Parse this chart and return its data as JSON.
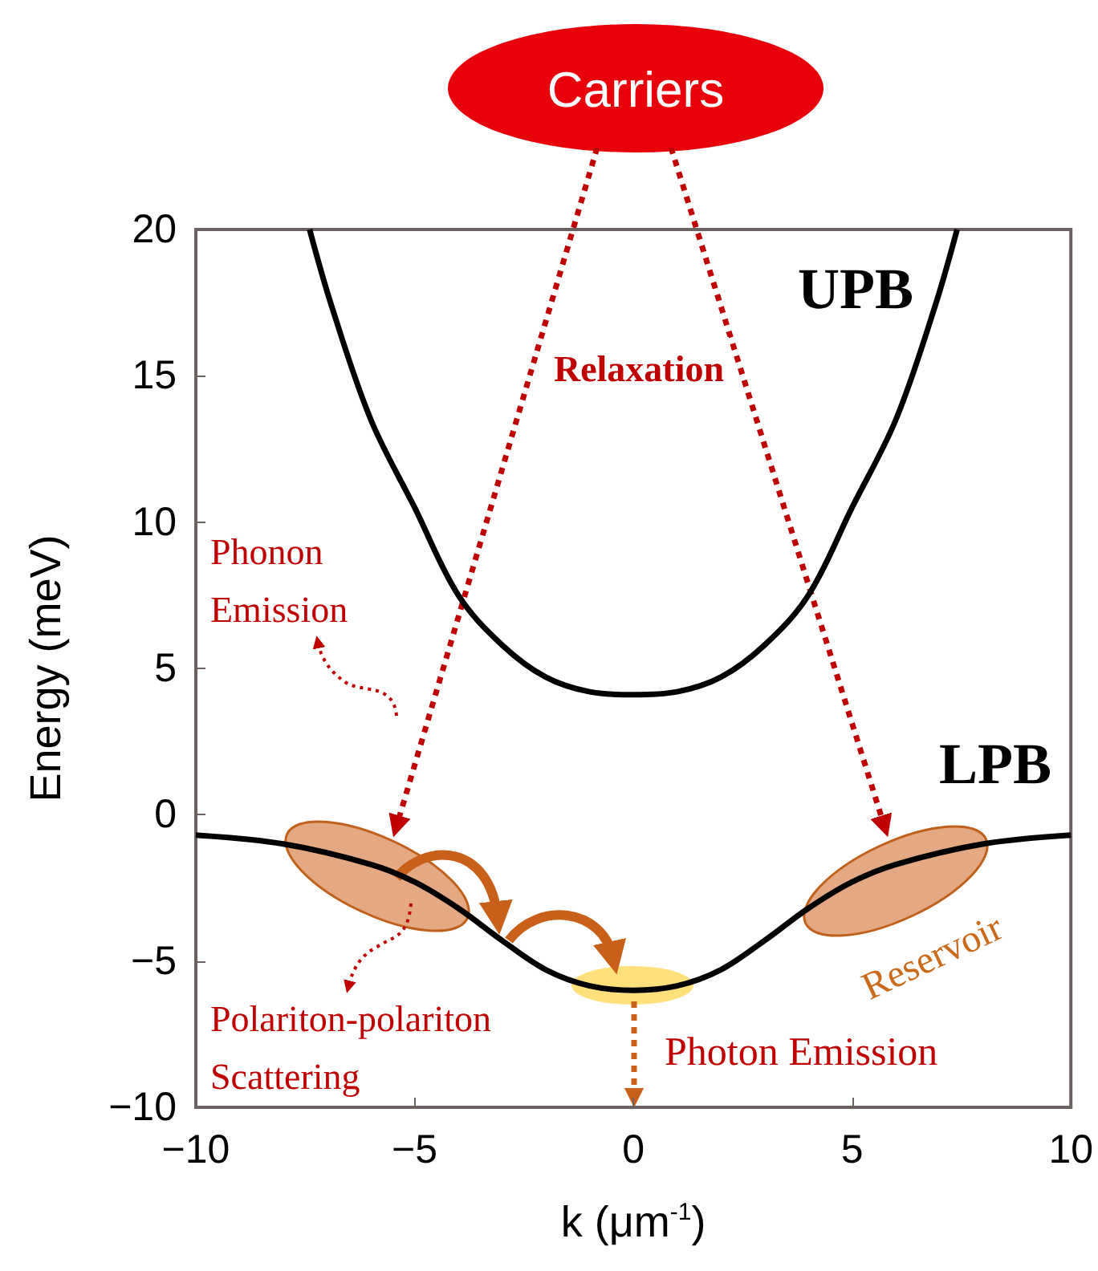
{
  "chart_data": {
    "type": "line",
    "xlabel": "k (μm$^{-1}$)",
    "ylabel": "Energy (meV)",
    "xlim": [
      -10,
      10
    ],
    "xticks": [
      -10,
      -5,
      0,
      5,
      10
    ],
    "ylim": [
      -10,
      20
    ],
    "yticks": [
      -10,
      -5,
      0,
      5,
      10,
      15,
      20
    ],
    "grid": false,
    "legend": false,
    "marker": "none",
    "line_style": "solid",
    "series": [
      {
        "name": "UPB",
        "color": "#000000",
        "x": [
          -7.4,
          -6.9,
          -6,
          -5,
          -4,
          -3,
          -2,
          -1,
          0,
          1,
          2,
          3,
          4,
          5,
          6,
          6.9,
          7.4
        ],
        "values": [
          20,
          17.4,
          13.5,
          10.5,
          7.5,
          5.8,
          4.7,
          4.2,
          4.1,
          4.2,
          4.7,
          5.8,
          7.5,
          10.5,
          13.5,
          17.4,
          20
        ]
      },
      {
        "name": "LPB",
        "color": "#000000",
        "x": [
          -10,
          -8,
          -6,
          -5,
          -4,
          -3,
          -2,
          -1,
          0,
          1,
          2,
          3,
          4,
          5,
          6,
          8,
          10
        ],
        "values": [
          -0.7,
          -1.0,
          -1.7,
          -2.3,
          -3.2,
          -4.3,
          -5.3,
          -5.85,
          -6,
          -5.85,
          -5.3,
          -4.3,
          -3.2,
          -2.3,
          -1.7,
          -1.0,
          -0.7
        ]
      }
    ],
    "annotations": [
      "Carriers",
      "Relaxation",
      "Phonon Emission",
      "Polariton-polariton Scattering",
      "Photon Emission",
      "Reservoir"
    ]
  }
}
